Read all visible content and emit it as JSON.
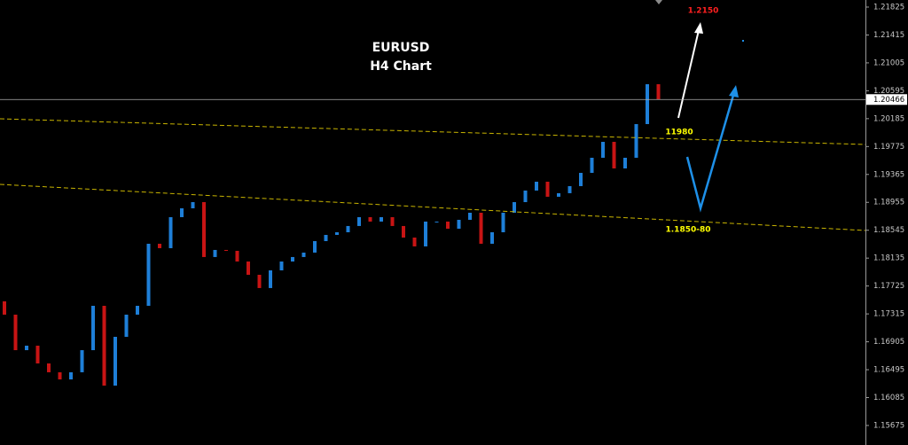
{
  "chart_data": {
    "type": "candlestick",
    "title": "EURUSD",
    "subtitle": "H4 Chart",
    "annotations": [
      "1.2150",
      "11980",
      "1.1850-80"
    ],
    "up_color": "#1e7fd8",
    "down_color": "#c81414",
    "ylim": [
      1.15388,
      1.21929
    ],
    "yticks": [
      1.21825,
      1.21415,
      1.21005,
      1.20595,
      1.20185,
      1.19775,
      1.19365,
      1.18955,
      1.18545,
      1.18135,
      1.17725,
      1.17315,
      1.16905,
      1.16495,
      1.16085,
      1.15675
    ],
    "current_price": 1.20466,
    "open": [
      1.175,
      1.17304,
      1.16782,
      1.16848,
      1.16587,
      1.16457,
      1.16352,
      1.16457,
      1.16782,
      1.17434,
      1.16261,
      1.16978,
      1.17304,
      1.17434,
      1.18346,
      1.18281,
      1.18737,
      1.18867,
      1.18958,
      1.18151,
      1.18255,
      1.18242,
      1.18085,
      1.1789,
      1.17695,
      1.17955,
      1.18085,
      1.18151,
      1.18216,
      1.18385,
      1.18476,
      1.18515,
      1.18607,
      1.18737,
      1.18672,
      1.18737,
      1.18607,
      1.18437,
      1.18307,
      1.18672,
      1.18672,
      1.18567,
      1.18698,
      1.18802,
      1.18346,
      1.18515,
      1.18802,
      1.18958,
      1.19128,
      1.19258,
      1.19037,
      1.19089,
      1.19193,
      1.19388,
      1.1961,
      1.19844,
      1.19453,
      1.1961,
      1.20105,
      1.20691
    ],
    "close": [
      1.17304,
      1.16782,
      1.16848,
      1.16587,
      1.16457,
      1.16352,
      1.16457,
      1.16782,
      1.17434,
      1.16261,
      1.16978,
      1.17304,
      1.17434,
      1.18346,
      1.18281,
      1.18737,
      1.18867,
      1.18958,
      1.18151,
      1.18255,
      1.18242,
      1.18085,
      1.1789,
      1.17695,
      1.17955,
      1.18085,
      1.18151,
      1.18216,
      1.18385,
      1.18476,
      1.18515,
      1.18607,
      1.18737,
      1.18672,
      1.18737,
      1.18607,
      1.18437,
      1.18307,
      1.18672,
      1.18672,
      1.18567,
      1.18698,
      1.18802,
      1.18346,
      1.18515,
      1.18802,
      1.18958,
      1.19128,
      1.19258,
      1.19037,
      1.19089,
      1.19193,
      1.19388,
      1.1961,
      1.19844,
      1.19453,
      1.1961,
      1.20105,
      1.20691,
      1.2047
    ]
  }
}
